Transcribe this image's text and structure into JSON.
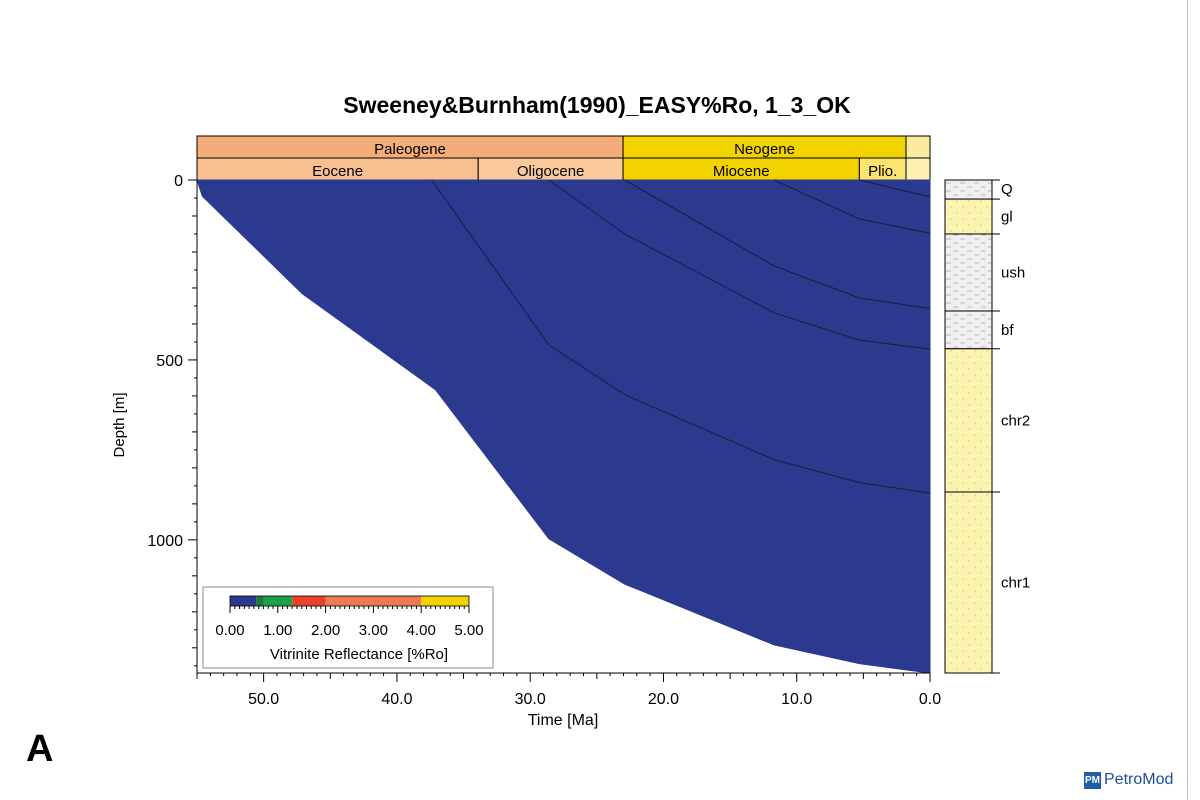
{
  "panel_label": "A",
  "logo": {
    "mark": "PM",
    "text": "PetroMod"
  },
  "colors": {
    "fill": "#2b3a8f",
    "period_paleogene": "#f4ad78",
    "period_neogene": "#f2d300",
    "period_quaternary": "#fbeb9e",
    "epoch_eocene": "#f8bf90",
    "epoch_oligocene": "#f9c99c",
    "epoch_miocene": "#f2d300",
    "epoch_pliocene": "#fbe570",
    "epoch_quaternary": "#fdf0b0",
    "lith_shale": "#efefef",
    "lith_sand": "#fbf3b0",
    "isoline": "#1a1a3a"
  },
  "chart_data": {
    "type": "area",
    "title": "Sweeney&Burnham(1990)_EASY%Ro, 1_3_OK",
    "xlabel": "Time [Ma]",
    "ylabel": "Depth [m]",
    "xlim": [
      55,
      0
    ],
    "ylim": [
      0,
      1370
    ],
    "x_ticks": [
      50,
      40,
      30,
      20,
      10,
      0
    ],
    "x_tick_labels": [
      "50.0",
      "40.0",
      "30.0",
      "20.0",
      "10.0",
      "0.0"
    ],
    "y_ticks": [
      0,
      500,
      1000
    ],
    "y_tick_labels": [
      "0",
      "500",
      "1000"
    ],
    "base_boundary": [
      {
        "t": 54.6,
        "d": 45
      },
      {
        "t": 47.1,
        "d": 316
      },
      {
        "t": 37.1,
        "d": 583
      },
      {
        "t": 28.6,
        "d": 997
      },
      {
        "t": 22.9,
        "d": 1123
      },
      {
        "t": 11.7,
        "d": 1292
      },
      {
        "t": 5.3,
        "d": 1344
      },
      {
        "t": 0,
        "d": 1370
      }
    ],
    "isolines": [
      [
        {
          "t": 37.4,
          "d": 0
        },
        {
          "t": 28.6,
          "d": 458
        },
        {
          "t": 22.9,
          "d": 597
        },
        {
          "t": 11.7,
          "d": 777
        },
        {
          "t": 5.3,
          "d": 841
        },
        {
          "t": 0,
          "d": 870
        }
      ],
      [
        {
          "t": 28.6,
          "d": 0
        },
        {
          "t": 22.9,
          "d": 150
        },
        {
          "t": 11.7,
          "d": 369
        },
        {
          "t": 5.3,
          "d": 445
        },
        {
          "t": 0,
          "d": 470
        }
      ],
      [
        {
          "t": 22.9,
          "d": 0
        },
        {
          "t": 11.7,
          "d": 239
        },
        {
          "t": 5.3,
          "d": 328
        },
        {
          "t": 0,
          "d": 357
        }
      ],
      [
        {
          "t": 11.7,
          "d": 0
        },
        {
          "t": 5.3,
          "d": 108
        },
        {
          "t": 0,
          "d": 148
        }
      ],
      [
        {
          "t": 5.3,
          "d": 0
        },
        {
          "t": 0,
          "d": 47
        }
      ]
    ],
    "periods": [
      {
        "name": "Paleogene",
        "start": 55,
        "end": 23.03,
        "color_key": "period_paleogene"
      },
      {
        "name": "Neogene",
        "start": 23.03,
        "end": 1.8,
        "color_key": "period_neogene"
      },
      {
        "name": "",
        "start": 1.8,
        "end": 0,
        "color_key": "period_quaternary"
      }
    ],
    "epochs": [
      {
        "name": "Eocene",
        "start": 55,
        "end": 33.9,
        "color_key": "epoch_eocene"
      },
      {
        "name": "Oligocene",
        "start": 33.9,
        "end": 23.03,
        "color_key": "epoch_oligocene"
      },
      {
        "name": "Miocene",
        "start": 23.03,
        "end": 5.3,
        "color_key": "epoch_miocene"
      },
      {
        "name": "Plio.",
        "start": 5.3,
        "end": 1.8,
        "color_key": "epoch_pliocene"
      },
      {
        "name": "",
        "start": 1.8,
        "end": 0,
        "color_key": "epoch_quaternary"
      }
    ],
    "stratigraphy": [
      {
        "name": "Q",
        "top": 0,
        "base": 53,
        "lithology": "lith_shale"
      },
      {
        "name": "gl",
        "top": 53,
        "base": 150,
        "lithology": "lith_sand"
      },
      {
        "name": "ush",
        "top": 150,
        "base": 364,
        "lithology": "lith_shale"
      },
      {
        "name": "bf",
        "top": 364,
        "base": 469,
        "lithology": "lith_shale"
      },
      {
        "name": "chr2",
        "top": 469,
        "base": 867,
        "lithology": "lith_sand"
      },
      {
        "name": "chr1",
        "top": 867,
        "base": 1370,
        "lithology": "lith_sand"
      }
    ],
    "legend": {
      "title": "Vitrinite Reflectance [%Ro]",
      "placement": "bottom-left",
      "tick_labels": [
        "0.00",
        "1.00",
        "2.00",
        "3.00",
        "4.00",
        "5.00"
      ],
      "range": [
        0,
        5
      ],
      "stops": [
        {
          "from": 0.0,
          "to": 0.55,
          "color": "#2b3a8f"
        },
        {
          "from": 0.55,
          "to": 0.7,
          "color": "#1a7a3a"
        },
        {
          "from": 0.7,
          "to": 1.3,
          "color": "#1ea04a"
        },
        {
          "from": 1.3,
          "to": 2.0,
          "color": "#e8432a"
        },
        {
          "from": 2.0,
          "to": 4.0,
          "color": "#ee7a4f"
        },
        {
          "from": 4.0,
          "to": 5.0,
          "color": "#f2d300"
        }
      ]
    }
  }
}
